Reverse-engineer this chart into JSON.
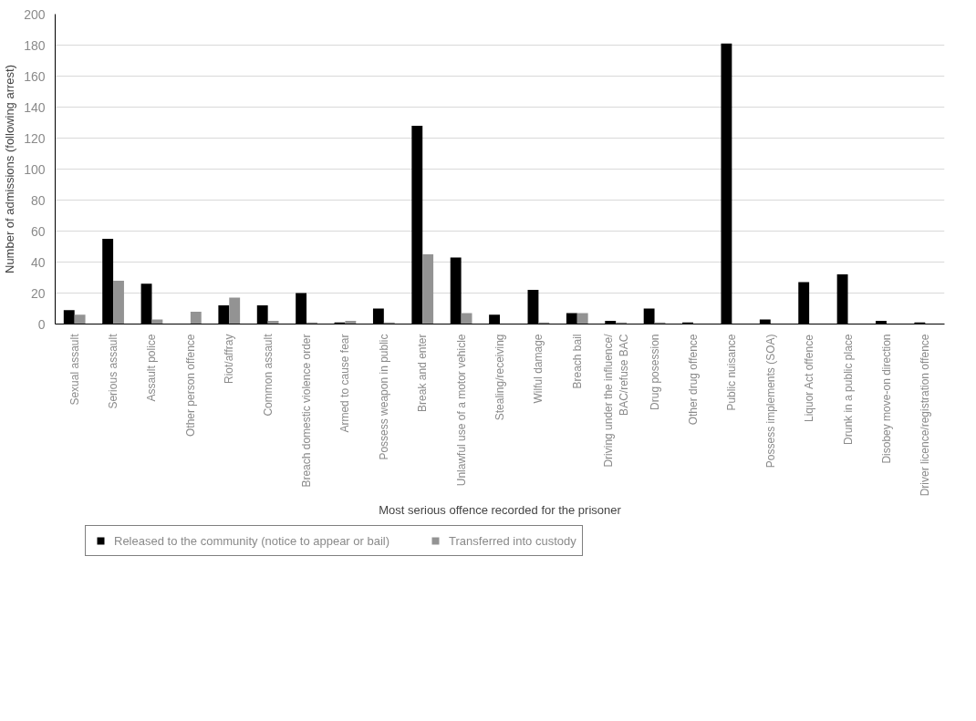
{
  "chart_data": {
    "type": "bar",
    "xlabel": "Most serious offence recorded for the prisoner",
    "ylabel": "Number of admissions (following arrest)",
    "categories": [
      "Sexual assault",
      "Serious assault",
      "Assault police",
      "Other person offence",
      "Riot/affray",
      "Common assault",
      "Breach domestic violence order",
      "Armed to cause fear",
      "Possess weapon in public",
      "Break and enter",
      "Unlawful use of a motor vehicle",
      "Stealing/receiving",
      "Wilful damage",
      "Breach bail",
      "Driving under the influence/\nBAC/refuse BAC",
      "Drug posession",
      "Other drug offence",
      "Public nuisance",
      "Possess implements (SOA)",
      "Liquor Act offence",
      "Drunk in a public place",
      "Disobey move-on direction",
      "Driver licence/registration offence"
    ],
    "series": [
      {
        "name": "Released to the community (notice to appear or bail)",
        "color": "#000000",
        "values": [
          9,
          55,
          26,
          0,
          12,
          12,
          20,
          1,
          10,
          128,
          43,
          6,
          22,
          7,
          2,
          10,
          1,
          181,
          3,
          27,
          32,
          2,
          1
        ]
      },
      {
        "name": "Transferred into custody",
        "color": "#939393",
        "values": [
          6,
          28,
          3,
          8,
          17,
          2,
          1,
          2,
          1,
          45,
          7,
          0,
          1,
          7,
          1,
          1,
          0,
          0,
          0,
          0,
          0,
          0,
          0
        ]
      }
    ],
    "ylim": [
      0,
      200
    ],
    "yticks": [
      0,
      20,
      40,
      60,
      80,
      100,
      120,
      140,
      160,
      180,
      200
    ],
    "grid": "y",
    "legend": "bottom"
  }
}
